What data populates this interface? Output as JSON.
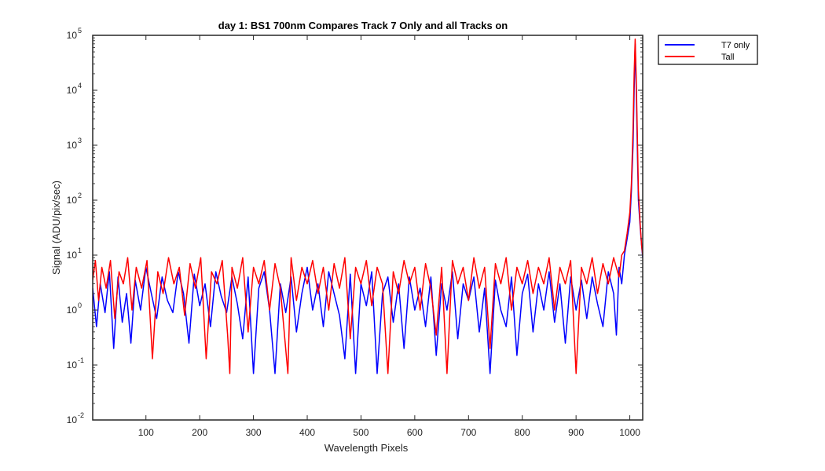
{
  "chart_data": {
    "type": "line",
    "title": "day 1: BS1  700nm  Compares Track 7 Only and all Tracks on",
    "xlabel": "Wavelength Pixels",
    "ylabel": "Signal (ADU/pix/sec)",
    "xlim": [
      1,
      1024
    ],
    "ylim": [
      0.01,
      100000
    ],
    "yscale": "log",
    "x_ticks": [
      100,
      200,
      300,
      400,
      500,
      600,
      700,
      800,
      900,
      1000
    ],
    "y_ticks": [
      {
        "base": "10",
        "exp": "-2",
        "value": 0.01
      },
      {
        "base": "10",
        "exp": "-1",
        "value": 0.1
      },
      {
        "base": "10",
        "exp": "0",
        "value": 1
      },
      {
        "base": "10",
        "exp": "1",
        "value": 10
      },
      {
        "base": "10",
        "exp": "2",
        "value": 100
      },
      {
        "base": "10",
        "exp": "3",
        "value": 1000
      },
      {
        "base": "10",
        "exp": "4",
        "value": 10000
      },
      {
        "base": "10",
        "exp": "5",
        "value": 100000
      }
    ],
    "grid": false,
    "legend_position": "outside-top-right",
    "series": [
      {
        "name": "T7 only",
        "color": "#0000ff",
        "points": [
          [
            1,
            2.5
          ],
          [
            8,
            0.5
          ],
          [
            15,
            3.0
          ],
          [
            24,
            0.9
          ],
          [
            32,
            5.0
          ],
          [
            40,
            0.2
          ],
          [
            48,
            4.0
          ],
          [
            56,
            0.6
          ],
          [
            64,
            2.0
          ],
          [
            72,
            0.25
          ],
          [
            80,
            3.5
          ],
          [
            90,
            1.0
          ],
          [
            100,
            6.0
          ],
          [
            110,
            2.0
          ],
          [
            120,
            0.7
          ],
          [
            130,
            4.0
          ],
          [
            140,
            1.5
          ],
          [
            150,
            0.9
          ],
          [
            160,
            5.0
          ],
          [
            170,
            2.0
          ],
          [
            180,
            0.25
          ],
          [
            190,
            4.5
          ],
          [
            200,
            1.2
          ],
          [
            210,
            3.0
          ],
          [
            220,
            0.5
          ],
          [
            230,
            5.0
          ],
          [
            240,
            1.8
          ],
          [
            250,
            0.9
          ],
          [
            260,
            4.0
          ],
          [
            270,
            1.3
          ],
          [
            280,
            0.3
          ],
          [
            290,
            4.0
          ],
          [
            300,
            0.07
          ],
          [
            310,
            2.5
          ],
          [
            320,
            5.0
          ],
          [
            330,
            1.0
          ],
          [
            340,
            0.07
          ],
          [
            350,
            3.0
          ],
          [
            360,
            0.9
          ],
          [
            370,
            4.0
          ],
          [
            380,
            0.4
          ],
          [
            390,
            2.0
          ],
          [
            400,
            6.0
          ],
          [
            410,
            1.0
          ],
          [
            420,
            3.0
          ],
          [
            430,
            0.5
          ],
          [
            440,
            5.0
          ],
          [
            450,
            2.0
          ],
          [
            460,
            0.8
          ],
          [
            470,
            0.13
          ],
          [
            480,
            4.5
          ],
          [
            490,
            0.07
          ],
          [
            500,
            3.0
          ],
          [
            510,
            1.2
          ],
          [
            520,
            5.0
          ],
          [
            530,
            0.07
          ],
          [
            540,
            2.0
          ],
          [
            550,
            4.0
          ],
          [
            560,
            0.6
          ],
          [
            570,
            3.0
          ],
          [
            580,
            0.2
          ],
          [
            590,
            4.0
          ],
          [
            600,
            1.0
          ],
          [
            610,
            2.5
          ],
          [
            620,
            0.5
          ],
          [
            630,
            4.0
          ],
          [
            640,
            0.15
          ],
          [
            650,
            3.0
          ],
          [
            660,
            1.0
          ],
          [
            670,
            5.0
          ],
          [
            680,
            0.3
          ],
          [
            690,
            3.0
          ],
          [
            700,
            1.5
          ],
          [
            710,
            4.0
          ],
          [
            720,
            0.4
          ],
          [
            730,
            2.5
          ],
          [
            740,
            0.07
          ],
          [
            750,
            3.5
          ],
          [
            760,
            1.0
          ],
          [
            770,
            0.5
          ],
          [
            780,
            4.0
          ],
          [
            790,
            0.15
          ],
          [
            800,
            2.0
          ],
          [
            810,
            4.5
          ],
          [
            820,
            0.4
          ],
          [
            830,
            3.0
          ],
          [
            840,
            1.0
          ],
          [
            850,
            5.0
          ],
          [
            860,
            0.6
          ],
          [
            870,
            3.0
          ],
          [
            880,
            0.25
          ],
          [
            890,
            4.0
          ],
          [
            900,
            1.0
          ],
          [
            910,
            3.5
          ],
          [
            920,
            0.7
          ],
          [
            930,
            4.0
          ],
          [
            940,
            1.3
          ],
          [
            950,
            0.5
          ],
          [
            960,
            5.0
          ],
          [
            970,
            2.0
          ],
          [
            975,
            0.35
          ],
          [
            980,
            6.0
          ],
          [
            985,
            3.0
          ],
          [
            990,
            10.0
          ],
          [
            995,
            20.0
          ],
          [
            1000,
            40.0
          ],
          [
            1003,
            150.0
          ],
          [
            1006,
            1000.0
          ],
          [
            1008,
            10000.0
          ],
          [
            1010,
            70000.0
          ],
          [
            1012,
            10000.0
          ],
          [
            1014,
            800.0
          ],
          [
            1016,
            100.0
          ],
          [
            1019,
            35.0
          ],
          [
            1022,
            15.0
          ],
          [
            1024,
            9.0
          ]
        ]
      },
      {
        "name": "Tall",
        "color": "#ff0000",
        "points": [
          [
            1,
            3.5
          ],
          [
            6,
            8.0
          ],
          [
            12,
            1.5
          ],
          [
            18,
            6.0
          ],
          [
            26,
            2.5
          ],
          [
            34,
            8.0
          ],
          [
            42,
            0.7
          ],
          [
            50,
            5.0
          ],
          [
            58,
            3.0
          ],
          [
            66,
            9.0
          ],
          [
            74,
            1.0
          ],
          [
            82,
            6.0
          ],
          [
            92,
            2.5
          ],
          [
            102,
            8.0
          ],
          [
            112,
            0.13
          ],
          [
            122,
            5.0
          ],
          [
            132,
            2.0
          ],
          [
            142,
            9.0
          ],
          [
            152,
            3.0
          ],
          [
            162,
            6.0
          ],
          [
            172,
            0.8
          ],
          [
            182,
            7.0
          ],
          [
            192,
            2.5
          ],
          [
            202,
            9.0
          ],
          [
            212,
            0.13
          ],
          [
            222,
            5.0
          ],
          [
            232,
            3.0
          ],
          [
            242,
            8.0
          ],
          [
            252,
            0.35
          ],
          [
            260,
            6.0
          ],
          [
            256,
            0.07
          ],
          [
            270,
            2.5
          ],
          [
            280,
            9.0
          ],
          [
            290,
            0.4
          ],
          [
            300,
            6.0
          ],
          [
            310,
            3.0
          ],
          [
            320,
            8.0
          ],
          [
            330,
            1.0
          ],
          [
            340,
            7.0
          ],
          [
            350,
            2.5
          ],
          [
            364,
            0.07
          ],
          [
            370,
            9.0
          ],
          [
            380,
            1.5
          ],
          [
            390,
            6.0
          ],
          [
            400,
            3.0
          ],
          [
            410,
            8.0
          ],
          [
            420,
            2.0
          ],
          [
            430,
            6.0
          ],
          [
            440,
            1.0
          ],
          [
            450,
            7.0
          ],
          [
            460,
            2.5
          ],
          [
            470,
            9.0
          ],
          [
            480,
            0.3
          ],
          [
            490,
            6.0
          ],
          [
            500,
            3.0
          ],
          [
            510,
            8.0
          ],
          [
            520,
            1.2
          ],
          [
            530,
            6.0
          ],
          [
            540,
            3.0
          ],
          [
            550,
            0.07
          ],
          [
            560,
            5.0
          ],
          [
            570,
            2.0
          ],
          [
            580,
            8.0
          ],
          [
            590,
            3.0
          ],
          [
            600,
            6.0
          ],
          [
            610,
            1.0
          ],
          [
            620,
            7.0
          ],
          [
            630,
            2.5
          ],
          [
            640,
            0.35
          ],
          [
            650,
            6.0
          ],
          [
            660,
            0.07
          ],
          [
            670,
            8.0
          ],
          [
            680,
            3.0
          ],
          [
            690,
            6.0
          ],
          [
            700,
            1.5
          ],
          [
            710,
            9.0
          ],
          [
            720,
            2.5
          ],
          [
            730,
            6.0
          ],
          [
            740,
            0.2
          ],
          [
            750,
            7.0
          ],
          [
            760,
            3.0
          ],
          [
            770,
            9.0
          ],
          [
            780,
            1.0
          ],
          [
            790,
            6.0
          ],
          [
            800,
            3.0
          ],
          [
            810,
            8.0
          ],
          [
            820,
            2.0
          ],
          [
            830,
            6.0
          ],
          [
            840,
            3.0
          ],
          [
            850,
            9.0
          ],
          [
            860,
            1.0
          ],
          [
            870,
            6.0
          ],
          [
            880,
            3.0
          ],
          [
            890,
            8.0
          ],
          [
            900,
            0.07
          ],
          [
            910,
            6.0
          ],
          [
            920,
            3.0
          ],
          [
            930,
            9.0
          ],
          [
            940,
            2.0
          ],
          [
            950,
            7.0
          ],
          [
            960,
            3.0
          ],
          [
            970,
            9.0
          ],
          [
            980,
            4.0
          ],
          [
            985,
            10.0
          ],
          [
            990,
            12.0
          ],
          [
            995,
            25.0
          ],
          [
            1000,
            60.0
          ],
          [
            1003,
            200.0
          ],
          [
            1006,
            2000.0
          ],
          [
            1008,
            20000.0
          ],
          [
            1010,
            85000.0
          ],
          [
            1012,
            15000.0
          ],
          [
            1014,
            1500.0
          ],
          [
            1016,
            150.0
          ],
          [
            1019,
            40.0
          ],
          [
            1022,
            15.0
          ],
          [
            1024,
            10.0
          ]
        ]
      }
    ]
  }
}
